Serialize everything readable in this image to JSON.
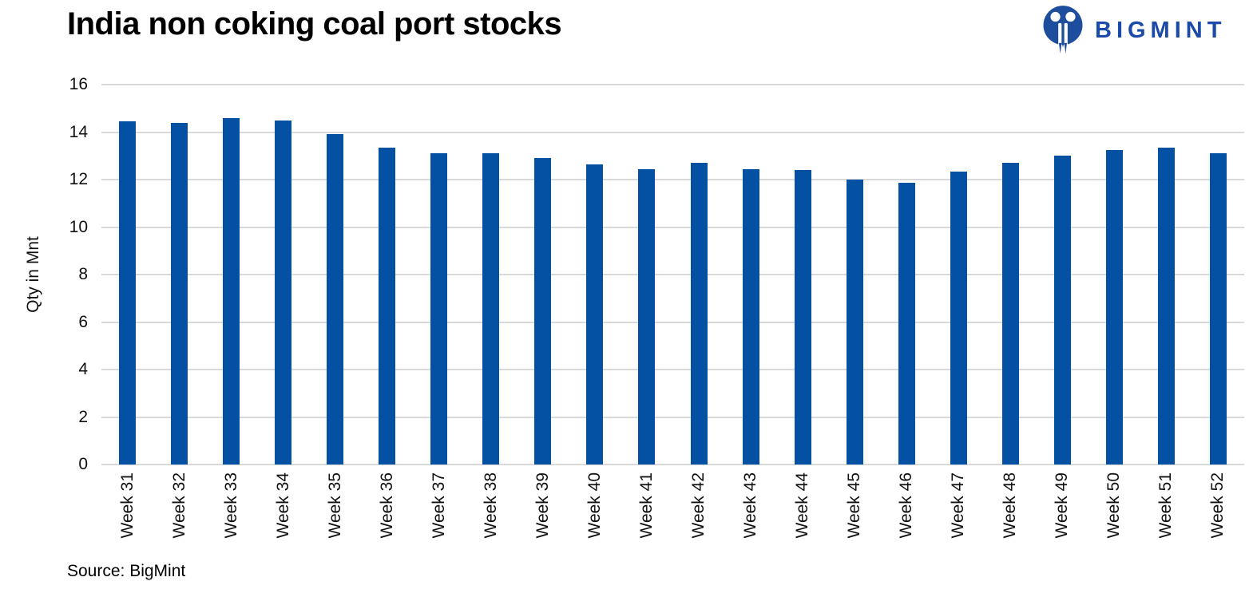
{
  "logo": {
    "text": "BIGMINT",
    "icon": "bigmint-people-m-icon",
    "brand_color": "#1C4AA8",
    "icon_color": "#1D4E9E"
  },
  "chart_data": {
    "type": "bar",
    "title": "India non coking coal port stocks",
    "xlabel": "",
    "ylabel": "Qty in Mnt",
    "ylim": [
      0,
      16
    ],
    "ytick_step": 2,
    "grid": "horizontal",
    "legend": "none",
    "bar_color": "#0450A3",
    "gridline_color": "#D9D9D9",
    "categories": [
      "Week 31",
      "Week 32",
      "Week 33",
      "Week 34",
      "Week 35",
      "Week 36",
      "Week 37",
      "Week 38",
      "Week 39",
      "Week 40",
      "Week 41",
      "Week 42",
      "Week 43",
      "Week 44",
      "Week 45",
      "Week 46",
      "Week 47",
      "Week 48",
      "Week 49",
      "Week 50",
      "Week 51",
      "Week 52"
    ],
    "values": [
      14.45,
      14.4,
      14.6,
      14.5,
      13.9,
      13.35,
      13.1,
      13.1,
      12.9,
      12.65,
      12.45,
      12.7,
      12.45,
      12.4,
      12.0,
      11.85,
      12.35,
      12.7,
      13.0,
      13.25,
      13.35,
      13.1
    ]
  },
  "footer": {
    "source": "Source: BigMint"
  }
}
